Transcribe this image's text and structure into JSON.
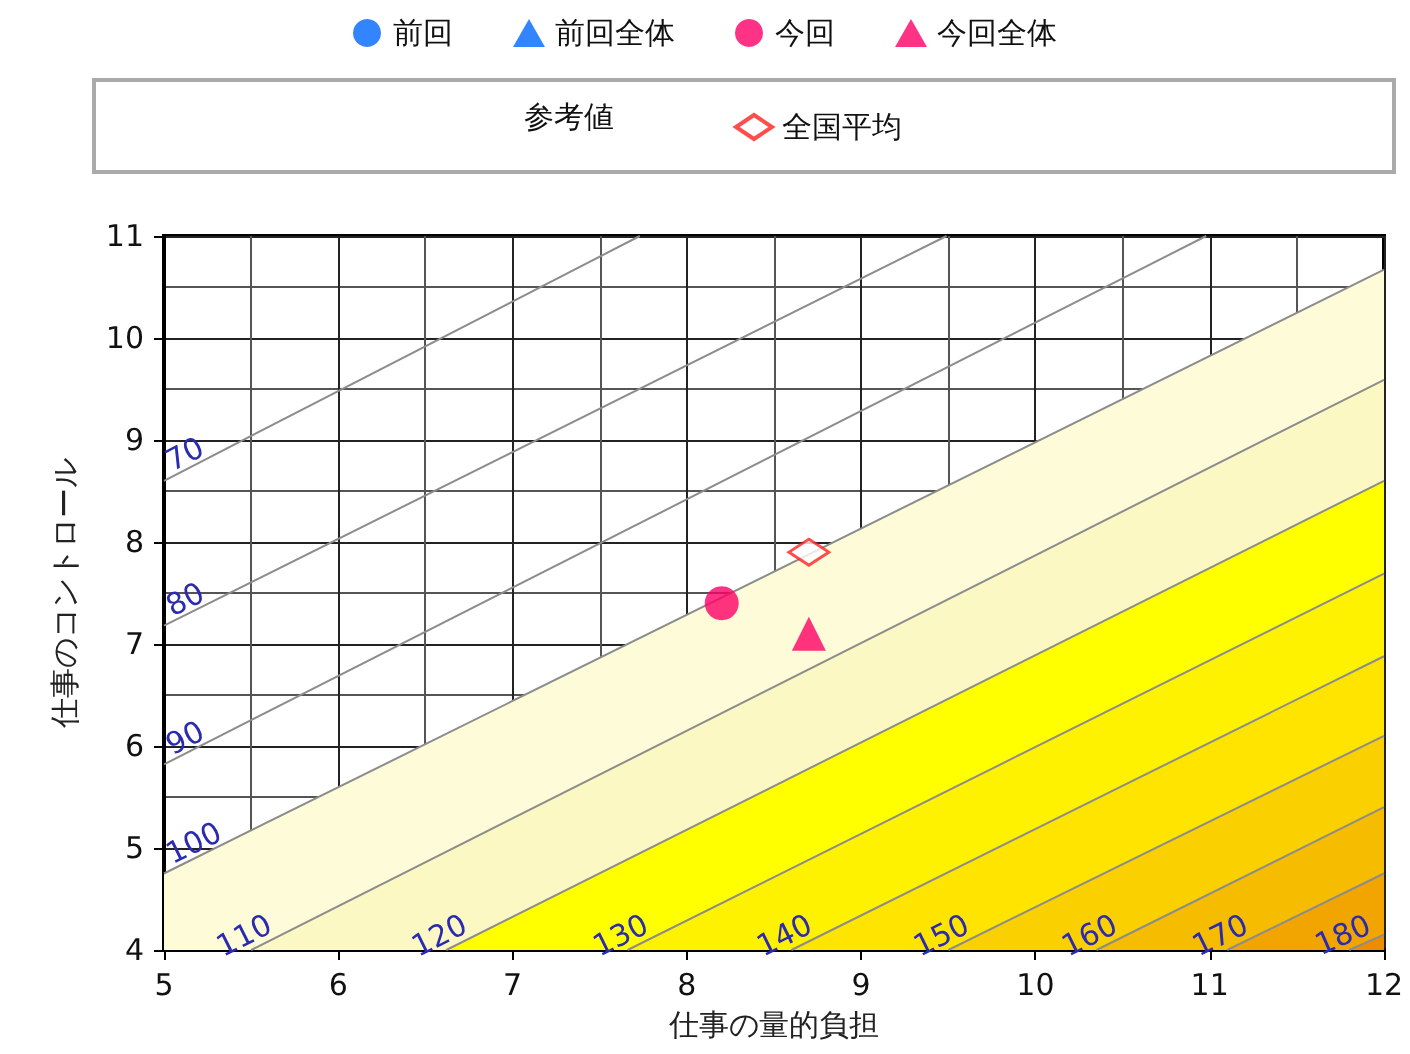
{
  "chart_data": {
    "type": "scatter",
    "xlabel": "仕事の量的負担",
    "ylabel": "仕事のコントロール",
    "xlim": [
      5,
      12
    ],
    "ylim": [
      4,
      11
    ],
    "xticks": [
      5,
      6,
      7,
      8,
      9,
      10,
      11,
      12
    ],
    "yticks": [
      4,
      5,
      6,
      7,
      8,
      9,
      10,
      11
    ],
    "grid": true,
    "legend": "top",
    "legend_title": "参考値",
    "series": [
      {
        "name": "70",
        "type": "line",
        "color": "#8c8c8c",
        "x": [
          5,
          7.73
        ],
        "values": [
          8.6,
          11
        ]
      },
      {
        "name": "80",
        "type": "line",
        "color": "#8c8c8c",
        "x": [
          5,
          9.49
        ],
        "values": [
          7.18,
          11
        ]
      },
      {
        "name": "90",
        "type": "line",
        "color": "#8c8c8c",
        "x": [
          5,
          10.98
        ],
        "values": [
          5.82,
          11
        ]
      },
      {
        "name": "100",
        "type": "area",
        "color": "#fdfbd8",
        "x": [
          5,
          12
        ],
        "values": [
          4.75,
          10.67
        ]
      },
      {
        "name": "110",
        "type": "area",
        "color": "#fcf8c4",
        "x": [
          5.5,
          12
        ],
        "values": [
          4,
          9.59
        ]
      },
      {
        "name": "120",
        "type": "area",
        "color": "#ffff00",
        "x": [
          6.62,
          12
        ],
        "values": [
          4,
          8.6
        ]
      },
      {
        "name": "130",
        "type": "area",
        "color": "#fff200",
        "x": [
          7.66,
          12
        ],
        "values": [
          4,
          7.69
        ]
      },
      {
        "name": "140",
        "type": "area",
        "color": "#ffe400",
        "x": [
          8.6,
          12
        ],
        "values": [
          4,
          6.88
        ]
      },
      {
        "name": "150",
        "type": "area",
        "color": "#fbd000",
        "x": [
          9.5,
          12
        ],
        "values": [
          4,
          6.1
        ]
      },
      {
        "name": "160",
        "type": "area",
        "color": "#f6bc00",
        "x": [
          10.35,
          12
        ],
        "values": [
          4,
          5.4
        ]
      },
      {
        "name": "170",
        "type": "area",
        "color": "#f2a500",
        "x": [
          11.1,
          12
        ],
        "values": [
          4,
          4.75
        ]
      },
      {
        "name": "180",
        "type": "area",
        "color": "#ec8c00",
        "x": [
          11.8,
          12
        ],
        "values": [
          4,
          4.15
        ]
      },
      {
        "name": "前回",
        "color": "#0066ff",
        "marker": "circle"
      },
      {
        "name": "前回全体",
        "color": "#0066ff",
        "marker": "triangle"
      },
      {
        "name": "今回",
        "color": "#ff0066",
        "marker": "circle",
        "x": [
          8.2
        ],
        "values": [
          7.4
        ]
      },
      {
        "name": "今回全体",
        "color": "#ff0066",
        "marker": "triangle",
        "x": [
          8.7
        ],
        "values": [
          7.1
        ]
      },
      {
        "name": "全国平均",
        "color": "#ff2020",
        "marker": "diamond",
        "x": [
          8.7
        ],
        "values": [
          7.9
        ]
      }
    ]
  }
}
